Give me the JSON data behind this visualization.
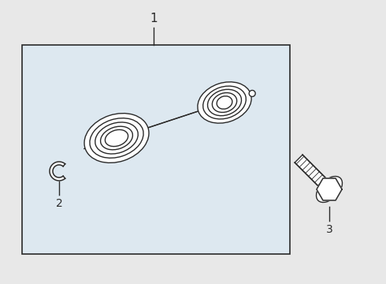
{
  "bg_color": "#e8e8e8",
  "line_color": "#2a2a2a",
  "box_color": "#dde8f0",
  "label_1": "1",
  "label_2": "2",
  "label_3": "3",
  "figsize": [
    4.9,
    3.6
  ],
  "dpi": 100
}
